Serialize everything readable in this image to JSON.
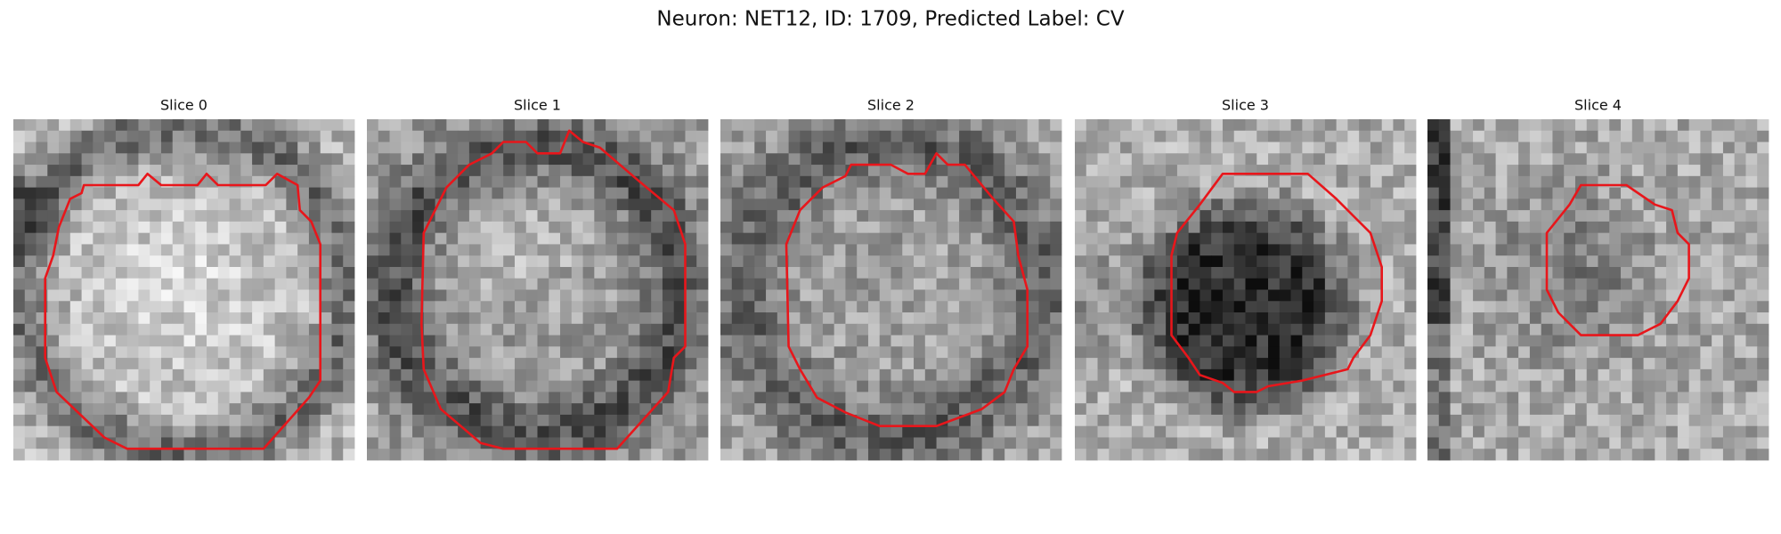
{
  "header": {
    "title": "Neuron: NET12, ID: 1709, Predicted Label: CV"
  },
  "panels": [
    {
      "title": "Slice 0"
    },
    {
      "title": "Slice 1"
    },
    {
      "title": "Slice 2"
    },
    {
      "title": "Slice 3"
    },
    {
      "title": "Slice 4"
    }
  ]
}
